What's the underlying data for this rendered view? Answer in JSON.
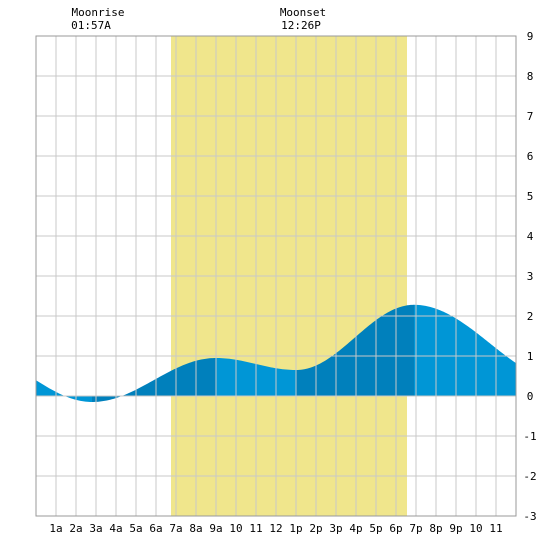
{
  "chart_data": {
    "type": "area",
    "moon": {
      "moonrise_label": "Moonrise",
      "moonrise_time": "01:57A",
      "moonset_label": "Moonset",
      "moonset_time": "12:26P"
    },
    "daylight": {
      "start_hour": 6.75,
      "end_hour": 18.55,
      "color": "#f0e68c"
    },
    "x_ticks": [
      {
        "hour": 1,
        "label": "1a"
      },
      {
        "hour": 2,
        "label": "2a"
      },
      {
        "hour": 3,
        "label": "3a"
      },
      {
        "hour": 4,
        "label": "4a"
      },
      {
        "hour": 5,
        "label": "5a"
      },
      {
        "hour": 6,
        "label": "6a"
      },
      {
        "hour": 7,
        "label": "7a"
      },
      {
        "hour": 8,
        "label": "8a"
      },
      {
        "hour": 9,
        "label": "9a"
      },
      {
        "hour": 10,
        "label": "10"
      },
      {
        "hour": 11,
        "label": "11"
      },
      {
        "hour": 12,
        "label": "12"
      },
      {
        "hour": 13,
        "label": "1p"
      },
      {
        "hour": 14,
        "label": "2p"
      },
      {
        "hour": 15,
        "label": "3p"
      },
      {
        "hour": 16,
        "label": "4p"
      },
      {
        "hour": 17,
        "label": "5p"
      },
      {
        "hour": 18,
        "label": "6p"
      },
      {
        "hour": 19,
        "label": "7p"
      },
      {
        "hour": 20,
        "label": "8p"
      },
      {
        "hour": 21,
        "label": "9p"
      },
      {
        "hour": 22,
        "label": "10"
      },
      {
        "hour": 23,
        "label": "11"
      }
    ],
    "y_ticks": [
      -3,
      -2,
      -1,
      0,
      1,
      2,
      3,
      4,
      5,
      6,
      7,
      8,
      9
    ],
    "xlim": [
      0,
      24
    ],
    "ylim": [
      -3,
      9
    ],
    "grid": true,
    "tide": {
      "extremes": [
        {
          "hour": -3.0,
          "height": 1.0
        },
        {
          "hour": 2.8,
          "height": -0.15
        },
        {
          "hour": 9.0,
          "height": 0.95
        },
        {
          "hour": 13.0,
          "height": 0.65
        },
        {
          "hour": 18.9,
          "height": 2.28
        },
        {
          "hour": 26.5,
          "height": 0.35
        }
      ],
      "color_light": "#0096d6",
      "color_dark": "#0080bc"
    }
  }
}
